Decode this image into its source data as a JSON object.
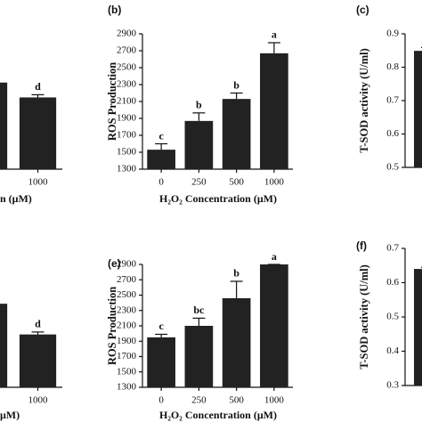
{
  "chart_data": [
    {
      "type": "bar",
      "categories": [
        null,
        "1000"
      ],
      "values": [
        64,
        53
      ],
      "errors": [
        0,
        2
      ],
      "labels": [
        null,
        "d"
      ],
      "ylim": [
        0,
        100
      ],
      "xlabel": "n (μM)",
      "color": "#222222"
    },
    {
      "type": "bar",
      "panel": "(b)",
      "ylabel": "ROS Production",
      "xlabel": "H₂O₂ Concentration (μM)",
      "categories": [
        "0",
        "250",
        "500",
        "1000"
      ],
      "values": [
        1530,
        1870,
        2130,
        2670
      ],
      "errors": [
        70,
        95,
        70,
        125
      ],
      "labels": [
        "c",
        "b",
        "b",
        "a"
      ],
      "ylim": [
        1300,
        2900
      ],
      "yticks": [
        1300,
        1500,
        1700,
        1900,
        2100,
        2300,
        2500,
        2700,
        2900
      ],
      "color": "#222222"
    },
    {
      "type": "bar",
      "panel": "(c)",
      "ylabel": "T-SOD activity (U/ml)",
      "categories": [
        null
      ],
      "values": [
        0.849
      ],
      "errors": [
        0.01
      ],
      "ylim": [
        0.5,
        0.9
      ],
      "yticks": [
        0.5,
        0.6,
        0.7,
        0.8,
        0.9
      ],
      "color": "#222222"
    },
    {
      "type": "bar",
      "categories": [
        null,
        "1000"
      ],
      "values": [
        68,
        43
      ],
      "errors": [
        0,
        2
      ],
      "labels": [
        null,
        "d"
      ],
      "ylim": [
        0,
        100
      ],
      "xlabel": "μM)",
      "color": "#222222"
    },
    {
      "type": "bar",
      "panel": "(e)",
      "ylabel": "ROS Production",
      "xlabel": "H₂O₂ Concentration (μM)",
      "categories": [
        "0",
        "250",
        "500",
        "1000"
      ],
      "values": [
        1950,
        2100,
        2460,
        2900
      ],
      "errors": [
        40,
        100,
        220,
        0
      ],
      "labels": [
        "c",
        "bc",
        "b",
        "a"
      ],
      "ylim": [
        1300,
        2900
      ],
      "yticks": [
        1300,
        1500,
        1700,
        1900,
        2100,
        2300,
        2500,
        2700,
        2900
      ],
      "color": "#222222"
    },
    {
      "type": "bar",
      "panel": "(f)",
      "ylabel": "T-SOD activity (U/ml)",
      "categories": [
        null
      ],
      "values": [
        0.64
      ],
      "errors": [
        0.005
      ],
      "ylim": [
        0.3,
        0.7
      ],
      "yticks": [
        0.3,
        0.4,
        0.5,
        0.6,
        0.7
      ],
      "color": "#222222"
    }
  ]
}
